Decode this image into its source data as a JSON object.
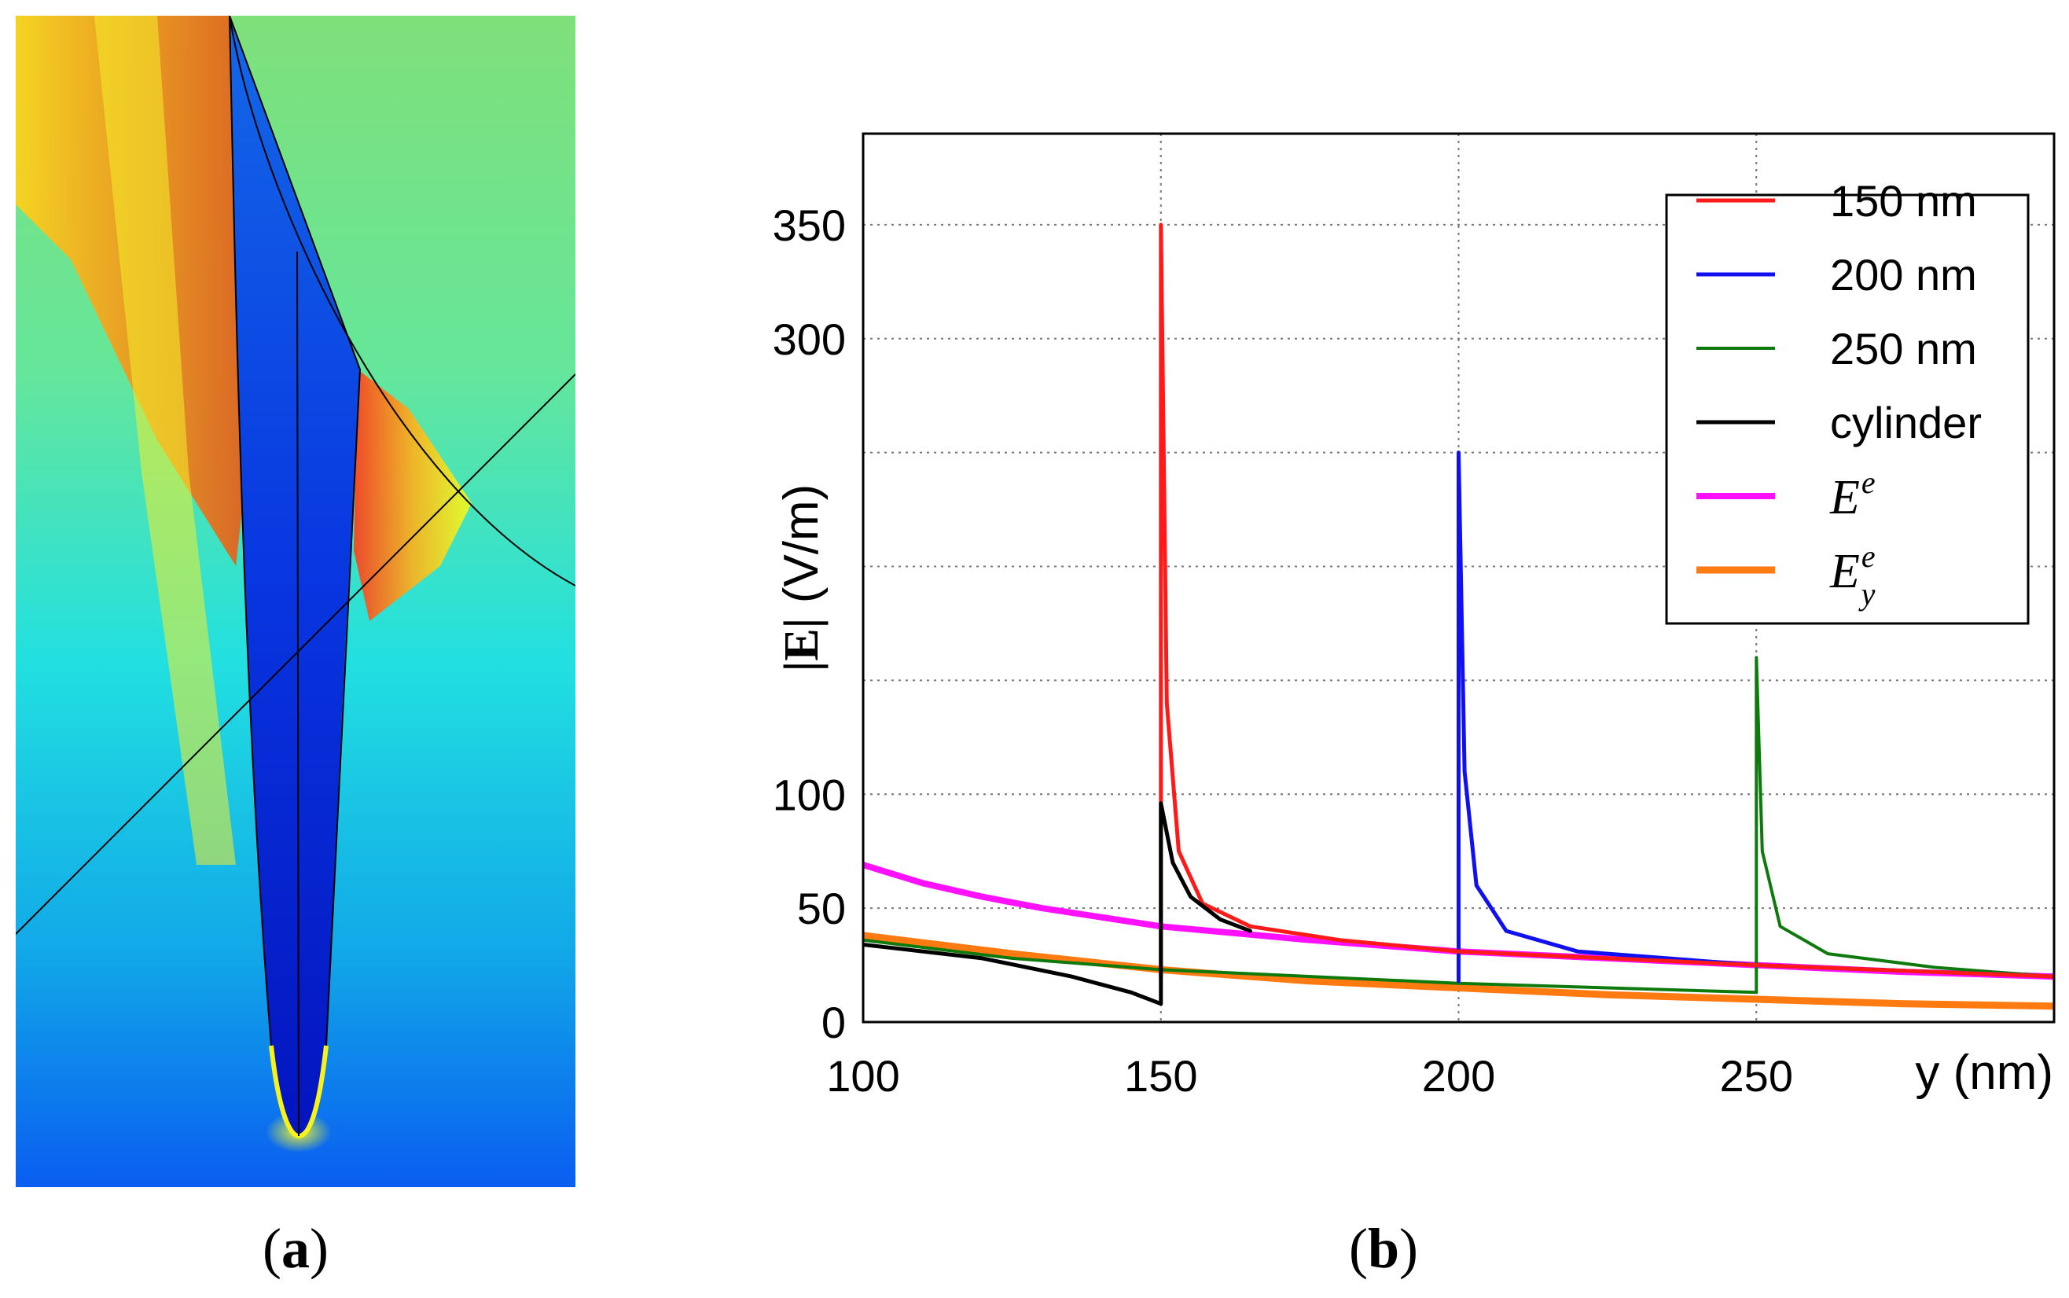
{
  "panel_a": {
    "label_letter": "a",
    "description": "Field magnitude map around a tapered needle"
  },
  "panel_b": {
    "label_letter": "b"
  },
  "colors": {
    "s150": "#ff1a1a",
    "s200": "#1010f0",
    "s250": "#0e7a0e",
    "cyl": "#000000",
    "Ee": "#ff10ff",
    "Eye": "#ff7a10"
  },
  "chart_data": {
    "type": "line",
    "title": "",
    "xlabel": "y (nm)",
    "ylabel": "|E| (V/m)",
    "ylabel_parts": {
      "abs": "|E|",
      "unit": "(V/m)"
    },
    "xlim": [
      100,
      300
    ],
    "ylim": [
      0,
      390
    ],
    "grid": true,
    "x_ticks": [
      100,
      150,
      200,
      250
    ],
    "y_ticks": [
      0,
      50,
      100,
      150,
      200,
      250,
      300,
      350
    ],
    "y_tick_labels": [
      "0",
      "50",
      "100",
      "",
      "",
      "",
      "300",
      "350"
    ],
    "legend_position": "top-right",
    "series": [
      {
        "name": "150 nm",
        "color_key": "s150",
        "values": [
          [
            150,
            20
          ],
          [
            150,
            350
          ],
          [
            151,
            140
          ],
          [
            153,
            75
          ],
          [
            157,
            52
          ],
          [
            165,
            42
          ],
          [
            180,
            36
          ],
          [
            200,
            31
          ],
          [
            250,
            25
          ],
          [
            300,
            20
          ]
        ]
      },
      {
        "name": "200 nm",
        "color_key": "s200",
        "values": [
          [
            200,
            18
          ],
          [
            200,
            250
          ],
          [
            201,
            110
          ],
          [
            203,
            60
          ],
          [
            208,
            40
          ],
          [
            220,
            31
          ],
          [
            250,
            25
          ],
          [
            300,
            20
          ]
        ]
      },
      {
        "name": "250 nm",
        "color_key": "s250",
        "values": [
          [
            100,
            36
          ],
          [
            125,
            28
          ],
          [
            150,
            23
          ],
          [
            200,
            17
          ],
          [
            250,
            13
          ],
          [
            250,
            160
          ],
          [
            251,
            75
          ],
          [
            254,
            42
          ],
          [
            262,
            30
          ],
          [
            280,
            24
          ],
          [
            300,
            20
          ]
        ]
      },
      {
        "name": "cylinder",
        "color_key": "cyl",
        "values": [
          [
            100,
            34
          ],
          [
            120,
            28
          ],
          [
            135,
            20
          ],
          [
            145,
            13
          ],
          [
            150,
            8
          ],
          [
            150,
            96
          ],
          [
            152,
            70
          ],
          [
            155,
            55
          ],
          [
            160,
            45
          ],
          [
            165,
            40
          ]
        ]
      },
      {
        "name": "E^e",
        "legend_base": "E",
        "legend_sup": "e",
        "legend_sub": "",
        "color_key": "Ee",
        "values": [
          [
            100,
            69
          ],
          [
            110,
            61
          ],
          [
            120,
            55
          ],
          [
            130,
            50
          ],
          [
            140,
            46
          ],
          [
            150,
            42
          ],
          [
            175,
            36
          ],
          [
            200,
            31
          ],
          [
            225,
            28
          ],
          [
            250,
            25
          ],
          [
            275,
            22
          ],
          [
            300,
            20
          ]
        ]
      },
      {
        "name": "E_y^e",
        "legend_base": "E",
        "legend_sup": "e",
        "legend_sub": "y",
        "color_key": "Eye",
        "values": [
          [
            100,
            38
          ],
          [
            125,
            30
          ],
          [
            150,
            23
          ],
          [
            175,
            18
          ],
          [
            200,
            15
          ],
          [
            225,
            12
          ],
          [
            250,
            10
          ],
          [
            275,
            8
          ],
          [
            300,
            7
          ]
        ]
      }
    ]
  }
}
